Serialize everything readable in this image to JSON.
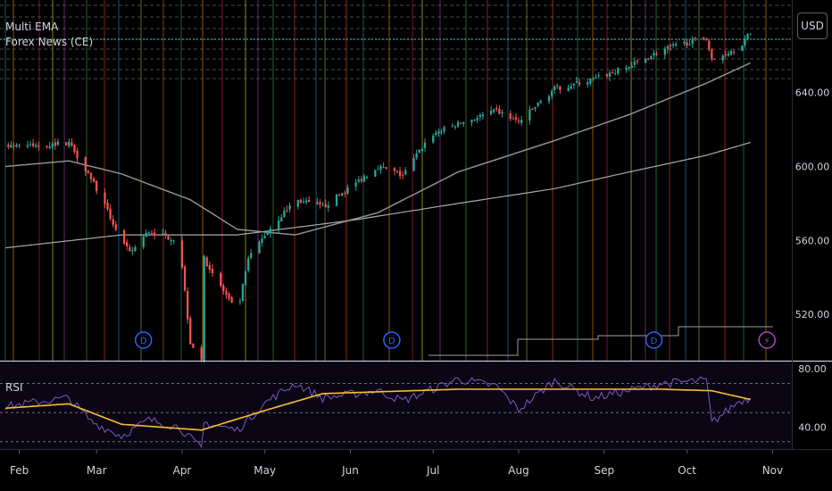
{
  "legend": {
    "indicator_1": "Multi EMA",
    "indicator_2": "Forex News (CE)"
  },
  "currency_button": "USD",
  "rsi_label": "RSI",
  "event_markers": [
    {
      "x_label": "Mar",
      "offset": 0.55,
      "glyph": "D",
      "color": "#2962ff"
    },
    {
      "x_label": "Jun",
      "offset": 0.5,
      "glyph": "D",
      "color": "#2962ff"
    },
    {
      "x_label": "Sep",
      "offset": 0.6,
      "glyph": "D",
      "color": "#2962ff"
    },
    {
      "x_label": "Oct",
      "offset": 0.95,
      "glyph": "⚡",
      "color": "#ab47bc"
    }
  ],
  "chart_data": [
    {
      "type": "candlestick",
      "title": "",
      "currency": "USD",
      "x_tick_labels": [
        "Feb",
        "Mar",
        "Apr",
        "May",
        "Jun",
        "Jul",
        "Aug",
        "Sep",
        "Oct",
        "Nov"
      ],
      "y_tick_labels": [
        "640.00",
        "600.00",
        "560.00",
        "520.00"
      ],
      "y_ticks": [
        640,
        600,
        560,
        520
      ],
      "ylim": [
        495,
        690
      ],
      "colors": {
        "up": "#26a69a",
        "down": "#ef5350",
        "ema_short": "#9e9e9e",
        "ema_long": "#bdbdbd"
      },
      "close_waypoints": [
        {
          "x": "Jan 27",
          "y": 612
        },
        {
          "x": "Feb 07",
          "y": 611
        },
        {
          "x": "Feb 19",
          "y": 613
        },
        {
          "x": "Feb 27",
          "y": 594
        },
        {
          "x": "Mar 10",
          "y": 560
        },
        {
          "x": "Mar 13",
          "y": 553
        },
        {
          "x": "Mar 20",
          "y": 565
        },
        {
          "x": "Mar 31",
          "y": 560
        },
        {
          "x": "Apr 04",
          "y": 505
        },
        {
          "x": "Apr 08",
          "y": 496
        },
        {
          "x": "Apr 09",
          "y": 550
        },
        {
          "x": "Apr 21",
          "y": 520
        },
        {
          "x": "Apr 25",
          "y": 550
        },
        {
          "x": "May 02",
          "y": 565
        },
        {
          "x": "May 12",
          "y": 582
        },
        {
          "x": "May 22",
          "y": 578
        },
        {
          "x": "Jun 02",
          "y": 590
        },
        {
          "x": "Jun 11",
          "y": 600
        },
        {
          "x": "Jun 20",
          "y": 595
        },
        {
          "x": "Jun 30",
          "y": 617
        },
        {
          "x": "Jul 10",
          "y": 623
        },
        {
          "x": "Jul 24",
          "y": 630
        },
        {
          "x": "Aug 01",
          "y": 624
        },
        {
          "x": "Aug 14",
          "y": 642
        },
        {
          "x": "Aug 28",
          "y": 647
        },
        {
          "x": "Sep 10",
          "y": 654
        },
        {
          "x": "Sep 22",
          "y": 663
        },
        {
          "x": "Oct 08",
          "y": 670
        },
        {
          "x": "Oct 10",
          "y": 657
        },
        {
          "x": "Oct 20",
          "y": 665
        },
        {
          "x": "Oct 24",
          "y": 672
        }
      ],
      "ema_short_waypoints": [
        {
          "x": "Jan 27",
          "y": 600
        },
        {
          "x": "Feb 19",
          "y": 603
        },
        {
          "x": "Mar 10",
          "y": 596
        },
        {
          "x": "Apr 04",
          "y": 582
        },
        {
          "x": "Apr 21",
          "y": 566
        },
        {
          "x": "May 12",
          "y": 563
        },
        {
          "x": "Jun 11",
          "y": 575
        },
        {
          "x": "Jul 10",
          "y": 597
        },
        {
          "x": "Aug 14",
          "y": 614
        },
        {
          "x": "Sep 10",
          "y": 628
        },
        {
          "x": "Oct 08",
          "y": 645
        },
        {
          "x": "Oct 24",
          "y": 656
        }
      ],
      "ema_long_waypoints": [
        {
          "x": "Jan 27",
          "y": 556
        },
        {
          "x": "Mar 10",
          "y": 563
        },
        {
          "x": "Apr 21",
          "y": 563
        },
        {
          "x": "Jun 02",
          "y": 571
        },
        {
          "x": "Jul 10",
          "y": 580
        },
        {
          "x": "Aug 14",
          "y": 588
        },
        {
          "x": "Sep 10",
          "y": 597
        },
        {
          "x": "Oct 08",
          "y": 606
        },
        {
          "x": "Oct 24",
          "y": 613
        }
      ]
    },
    {
      "type": "line",
      "title": "RSI",
      "y_tick_labels": [
        "80.00",
        "40.00"
      ],
      "y_ticks": [
        80,
        40
      ],
      "ylim": [
        25,
        85
      ],
      "bands": [
        70,
        50,
        30
      ],
      "series": [
        {
          "color": "#7e57c2",
          "waypoints": [
            {
              "x": "Jan 27",
              "y": 54
            },
            {
              "x": "Feb 10",
              "y": 58
            },
            {
              "x": "Feb 19",
              "y": 60
            },
            {
              "x": "Feb 27",
              "y": 44
            },
            {
              "x": "Mar 10",
              "y": 34
            },
            {
              "x": "Mar 20",
              "y": 45
            },
            {
              "x": "Mar 31",
              "y": 40
            },
            {
              "x": "Apr 08",
              "y": 25
            },
            {
              "x": "Apr 09",
              "y": 43
            },
            {
              "x": "Apr 21",
              "y": 38
            },
            {
              "x": "May 02",
              "y": 58
            },
            {
              "x": "May 12",
              "y": 70
            },
            {
              "x": "May 22",
              "y": 60
            },
            {
              "x": "Jun 11",
              "y": 65
            },
            {
              "x": "Jun 20",
              "y": 58
            },
            {
              "x": "Jul 10",
              "y": 73
            },
            {
              "x": "Jul 24",
              "y": 68
            },
            {
              "x": "Aug 01",
              "y": 52
            },
            {
              "x": "Aug 14",
              "y": 72
            },
            {
              "x": "Aug 28",
              "y": 60
            },
            {
              "x": "Sep 22",
              "y": 70
            },
            {
              "x": "Oct 08",
              "y": 72
            },
            {
              "x": "Oct 10",
              "y": 43
            },
            {
              "x": "Oct 20",
              "y": 58
            },
            {
              "x": "Oct 24",
              "y": 60
            }
          ]
        },
        {
          "color": "#fbc02d",
          "waypoints": [
            {
              "x": "Jan 27",
              "y": 53
            },
            {
              "x": "Feb 19",
              "y": 56
            },
            {
              "x": "Mar 10",
              "y": 42
            },
            {
              "x": "Apr 08",
              "y": 38
            },
            {
              "x": "May 02",
              "y": 52
            },
            {
              "x": "May 22",
              "y": 63
            },
            {
              "x": "Jul 10",
              "y": 66
            },
            {
              "x": "Aug 14",
              "y": 66
            },
            {
              "x": "Sep 22",
              "y": 66
            },
            {
              "x": "Oct 10",
              "y": 65
            },
            {
              "x": "Oct 24",
              "y": 59
            }
          ]
        }
      ]
    }
  ]
}
